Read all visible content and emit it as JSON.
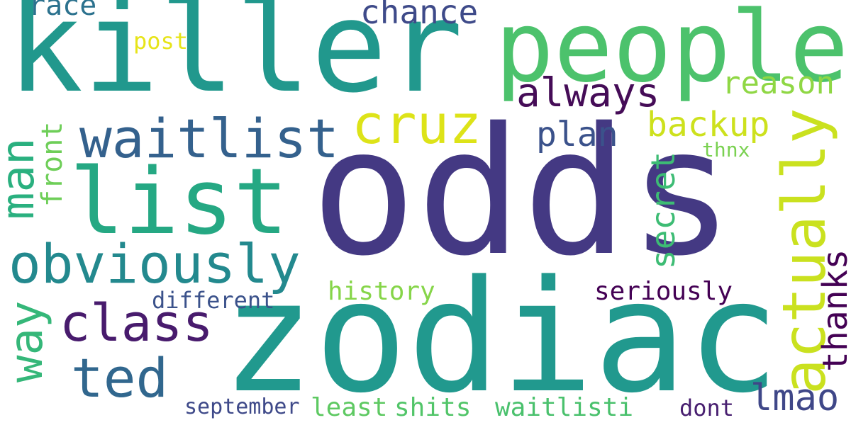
{
  "words": [
    {
      "id": "odds",
      "text": "odds",
      "color": "#443983",
      "rotate": false
    },
    {
      "id": "zodiac",
      "text": "zodiac",
      "color": "#21998e",
      "rotate": false
    },
    {
      "id": "killer",
      "text": "killer",
      "color": "#21988d",
      "rotate": false
    },
    {
      "id": "people",
      "text": "people",
      "color": "#4cc26c",
      "rotate": false
    },
    {
      "id": "list",
      "text": "list",
      "color": "#25a883",
      "rotate": false
    },
    {
      "id": "waitlist",
      "text": "waitlist",
      "color": "#34618d",
      "rotate": false
    },
    {
      "id": "obviously",
      "text": "obviously",
      "color": "#23898e",
      "rotate": false
    },
    {
      "id": "cruz",
      "text": "cruz",
      "color": "#dde318",
      "rotate": false
    },
    {
      "id": "class",
      "text": "class",
      "color": "#481b6d",
      "rotate": false
    },
    {
      "id": "ted",
      "text": "ted",
      "color": "#31678e",
      "rotate": false
    },
    {
      "id": "always",
      "text": "always",
      "color": "#450c57",
      "rotate": false
    },
    {
      "id": "chance",
      "text": "chance",
      "color": "#3e4a89",
      "rotate": false
    },
    {
      "id": "reason",
      "text": "reason",
      "color": "#8fd744",
      "rotate": false
    },
    {
      "id": "backup",
      "text": "backup",
      "color": "#cde11d",
      "rotate": false
    },
    {
      "id": "plan",
      "text": "plan",
      "color": "#3b528b",
      "rotate": false
    },
    {
      "id": "race",
      "text": "race",
      "color": "#2c728e",
      "rotate": false
    },
    {
      "id": "post",
      "text": "post",
      "color": "#e7e419",
      "rotate": false
    },
    {
      "id": "thnx",
      "text": "thnx",
      "color": "#7ad151",
      "rotate": false
    },
    {
      "id": "history",
      "text": "history",
      "color": "#86d549",
      "rotate": false
    },
    {
      "id": "seriously",
      "text": "seriously",
      "color": "#440154",
      "rotate": false
    },
    {
      "id": "different",
      "text": "different",
      "color": "#3b528b",
      "rotate": false
    },
    {
      "id": "lmao",
      "text": "lmao",
      "color": "#3f4788",
      "rotate": false
    },
    {
      "id": "september",
      "text": "september",
      "color": "#3e4989",
      "rotate": false
    },
    {
      "id": "least",
      "text": "least",
      "color": "#5ec962",
      "rotate": false
    },
    {
      "id": "shits",
      "text": "shits",
      "color": "#52c569",
      "rotate": false
    },
    {
      "id": "waitlisti",
      "text": "waitlisti",
      "color": "#4ac16d",
      "rotate": false
    },
    {
      "id": "dont",
      "text": "dont",
      "color": "#481f70",
      "rotate": false
    },
    {
      "id": "man",
      "text": "man",
      "color": "#2ab07f",
      "rotate": true
    },
    {
      "id": "front",
      "text": "front",
      "color": "#6ece58",
      "rotate": true
    },
    {
      "id": "way",
      "text": "way",
      "color": "#35b779",
      "rotate": true
    },
    {
      "id": "actually",
      "text": "actually",
      "color": "#cae11f",
      "rotate": true
    },
    {
      "id": "secret",
      "text": "secret",
      "color": "#3dbc74",
      "rotate": true
    },
    {
      "id": "thanks",
      "text": "thanks",
      "color": "#440154",
      "rotate": true
    }
  ]
}
